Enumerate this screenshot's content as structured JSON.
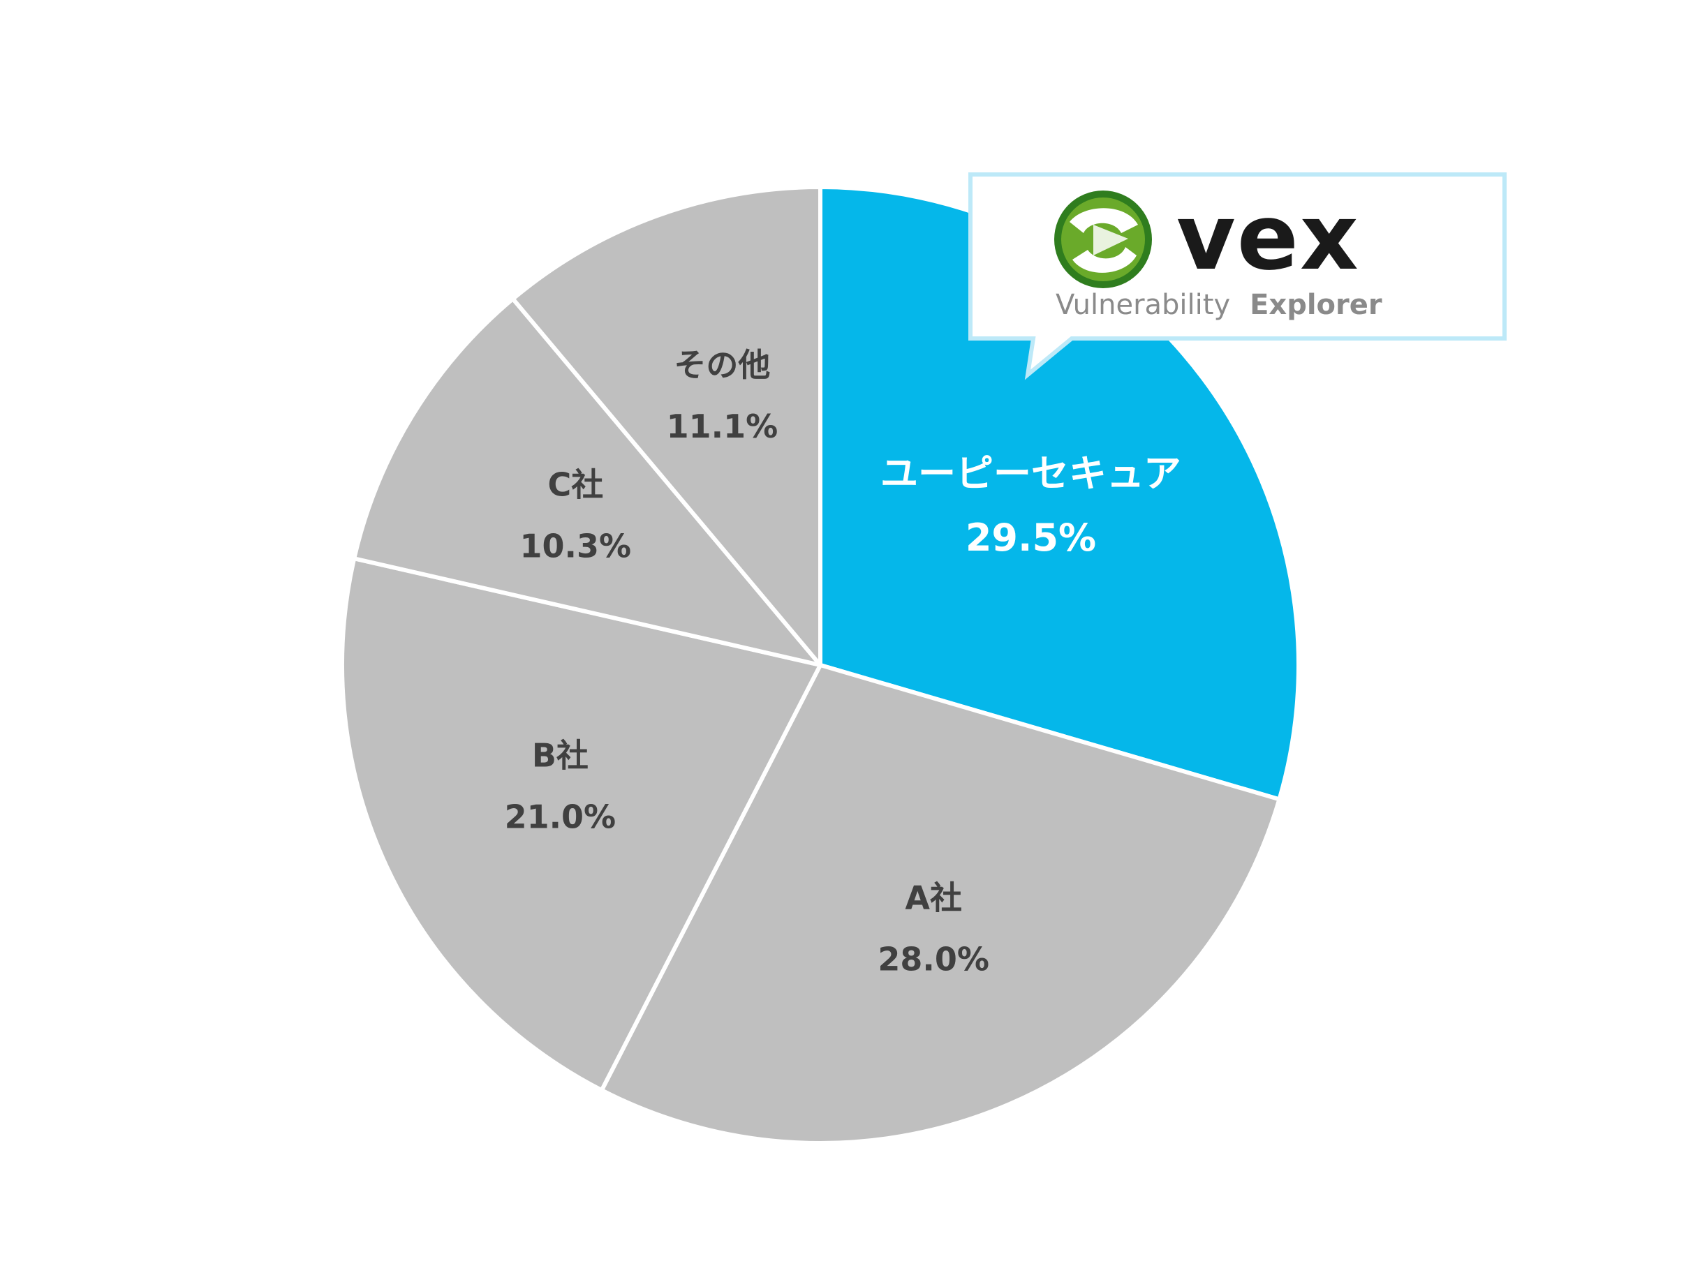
{
  "chart_data": {
    "type": "pie",
    "slices": [
      {
        "label": "ユーピーセキュア",
        "value": 29.5,
        "display": "29.5%",
        "color": "#05b7ea",
        "highlight": true
      },
      {
        "label": "A社",
        "value": 28.0,
        "display": "28.0%",
        "color": "#bfbfbf",
        "highlight": false
      },
      {
        "label": "B社",
        "value": 21.0,
        "display": "21.0%",
        "color": "#bfbfbf",
        "highlight": false
      },
      {
        "label": "C社",
        "value": 10.3,
        "display": "10.3%",
        "color": "#bfbfbf",
        "highlight": false
      },
      {
        "label": "その他",
        "value": 11.1,
        "display": "11.1%",
        "color": "#bfbfbf",
        "highlight": false
      }
    ],
    "start": "12 o'clock",
    "direction": "clockwise",
    "legend": "none",
    "label_colors": {
      "highlight": "#ffffff",
      "default": "#404040"
    }
  },
  "callout": {
    "logo_wordmark": "vex",
    "logo_subtitle_light": "Vulnerability",
    "logo_subtitle_bold": "Explorer",
    "colors": {
      "border": "#bde9f8",
      "wordmark": "#1a1a1a",
      "subtitle": "#8a8a8a",
      "emblem_green": "#6aaa2a",
      "emblem_dark": "#2f7d1e"
    }
  }
}
